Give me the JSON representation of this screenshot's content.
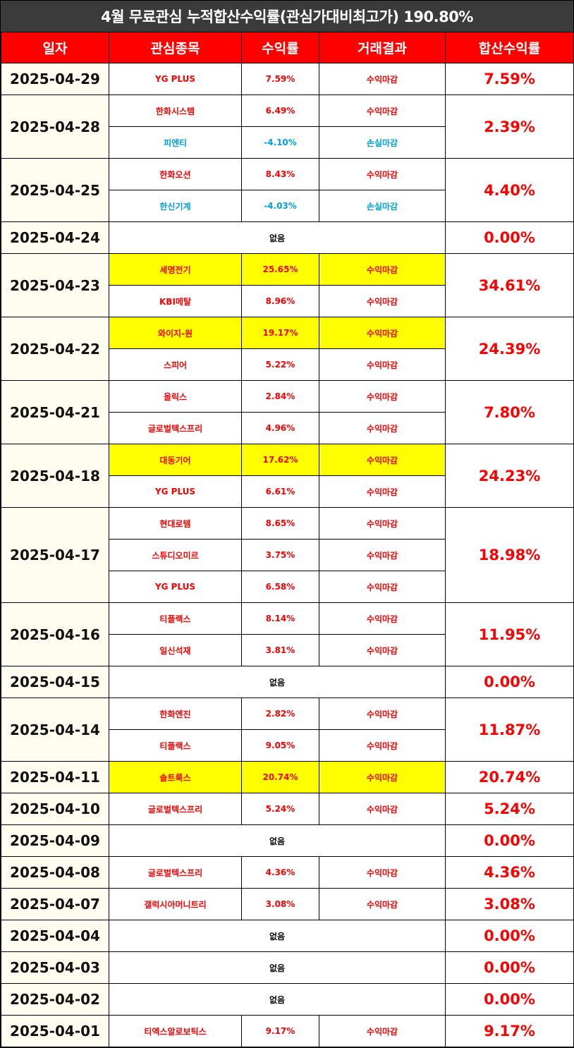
{
  "title": "4월 무료관심 누적합산수익률(관심가대비최고가) 190.80%",
  "headers": [
    "일자",
    "관심종목",
    "수익률",
    "거래결과",
    "합산수익률"
  ],
  "none_label": "없음",
  "colors": {
    "header_bg": "#ff0000",
    "title_bg": "#3b3b3b",
    "profit": "#ff0000",
    "loss": "#00a0e0",
    "highlight": "#ffff00"
  },
  "groups": [
    {
      "date": "2025-04-29",
      "total": "7.59%",
      "items": [
        {
          "name": "YG PLUS",
          "return": "7.59%",
          "result": "수익마감",
          "loss": false,
          "highlight": false
        }
      ]
    },
    {
      "date": "2025-04-28",
      "total": "2.39%",
      "items": [
        {
          "name": "한화시스템",
          "return": "6.49%",
          "result": "수익마감",
          "loss": false,
          "highlight": false
        },
        {
          "name": "피엔티",
          "return": "-4.10%",
          "result": "손실마감",
          "loss": true,
          "highlight": false
        }
      ]
    },
    {
      "date": "2025-04-25",
      "total": "4.40%",
      "items": [
        {
          "name": "한화오션",
          "return": "8.43%",
          "result": "수익마감",
          "loss": false,
          "highlight": false
        },
        {
          "name": "한신기계",
          "return": "-4.03%",
          "result": "손실마감",
          "loss": true,
          "highlight": false
        }
      ]
    },
    {
      "date": "2025-04-24",
      "total": "0.00%",
      "items": []
    },
    {
      "date": "2025-04-23",
      "total": "34.61%",
      "items": [
        {
          "name": "세명전기",
          "return": "25.65%",
          "result": "수익마감",
          "loss": false,
          "highlight": true
        },
        {
          "name": "KBI메탈",
          "return": "8.96%",
          "result": "수익마감",
          "loss": false,
          "highlight": false
        }
      ]
    },
    {
      "date": "2025-04-22",
      "total": "24.39%",
      "items": [
        {
          "name": "와이지-원",
          "return": "19.17%",
          "result": "수익마감",
          "loss": false,
          "highlight": true
        },
        {
          "name": "스피어",
          "return": "5.22%",
          "result": "수익마감",
          "loss": false,
          "highlight": false
        }
      ]
    },
    {
      "date": "2025-04-21",
      "total": "7.80%",
      "items": [
        {
          "name": "올릭스",
          "return": "2.84%",
          "result": "수익마감",
          "loss": false,
          "highlight": false
        },
        {
          "name": "글로벌텍스프리",
          "return": "4.96%",
          "result": "수익마감",
          "loss": false,
          "highlight": false
        }
      ]
    },
    {
      "date": "2025-04-18",
      "total": "24.23%",
      "items": [
        {
          "name": "대동기어",
          "return": "17.62%",
          "result": "수익마감",
          "loss": false,
          "highlight": true
        },
        {
          "name": "YG PLUS",
          "return": "6.61%",
          "result": "수익마감",
          "loss": false,
          "highlight": false
        }
      ]
    },
    {
      "date": "2025-04-17",
      "total": "18.98%",
      "items": [
        {
          "name": "현대로템",
          "return": "8.65%",
          "result": "수익마감",
          "loss": false,
          "highlight": false
        },
        {
          "name": "스튜디오미르",
          "return": "3.75%",
          "result": "수익마감",
          "loss": false,
          "highlight": false
        },
        {
          "name": "YG PLUS",
          "return": "6.58%",
          "result": "수익마감",
          "loss": false,
          "highlight": false
        }
      ]
    },
    {
      "date": "2025-04-16",
      "total": "11.95%",
      "items": [
        {
          "name": "티플랙스",
          "return": "8.14%",
          "result": "수익마감",
          "loss": false,
          "highlight": false
        },
        {
          "name": "일신석재",
          "return": "3.81%",
          "result": "수익마감",
          "loss": false,
          "highlight": false
        }
      ]
    },
    {
      "date": "2025-04-15",
      "total": "0.00%",
      "items": []
    },
    {
      "date": "2025-04-14",
      "total": "11.87%",
      "items": [
        {
          "name": "한화엔진",
          "return": "2.82%",
          "result": "수익마감",
          "loss": false,
          "highlight": false
        },
        {
          "name": "티플랙스",
          "return": "9.05%",
          "result": "수익마감",
          "loss": false,
          "highlight": false
        }
      ]
    },
    {
      "date": "2025-04-11",
      "total": "20.74%",
      "items": [
        {
          "name": "솔트룩스",
          "return": "20.74%",
          "result": "수익마감",
          "loss": false,
          "highlight": true
        }
      ]
    },
    {
      "date": "2025-04-10",
      "total": "5.24%",
      "items": [
        {
          "name": "글로벌텍스프리",
          "return": "5.24%",
          "result": "수익마감",
          "loss": false,
          "highlight": false
        }
      ]
    },
    {
      "date": "2025-04-09",
      "total": "0.00%",
      "items": []
    },
    {
      "date": "2025-04-08",
      "total": "4.36%",
      "items": [
        {
          "name": "글로벌텍스프리",
          "return": "4.36%",
          "result": "수익마감",
          "loss": false,
          "highlight": false
        }
      ]
    },
    {
      "date": "2025-04-07",
      "total": "3.08%",
      "items": [
        {
          "name": "갤럭시아머니트리",
          "return": "3.08%",
          "result": "수익마감",
          "loss": false,
          "highlight": false
        }
      ]
    },
    {
      "date": "2025-04-04",
      "total": "0.00%",
      "items": []
    },
    {
      "date": "2025-04-03",
      "total": "0.00%",
      "items": []
    },
    {
      "date": "2025-04-02",
      "total": "0.00%",
      "items": []
    },
    {
      "date": "2025-04-01",
      "total": "9.17%",
      "items": [
        {
          "name": "티엑스알로보틱스",
          "return": "9.17%",
          "result": "수익마감",
          "loss": false,
          "highlight": false
        }
      ]
    }
  ]
}
